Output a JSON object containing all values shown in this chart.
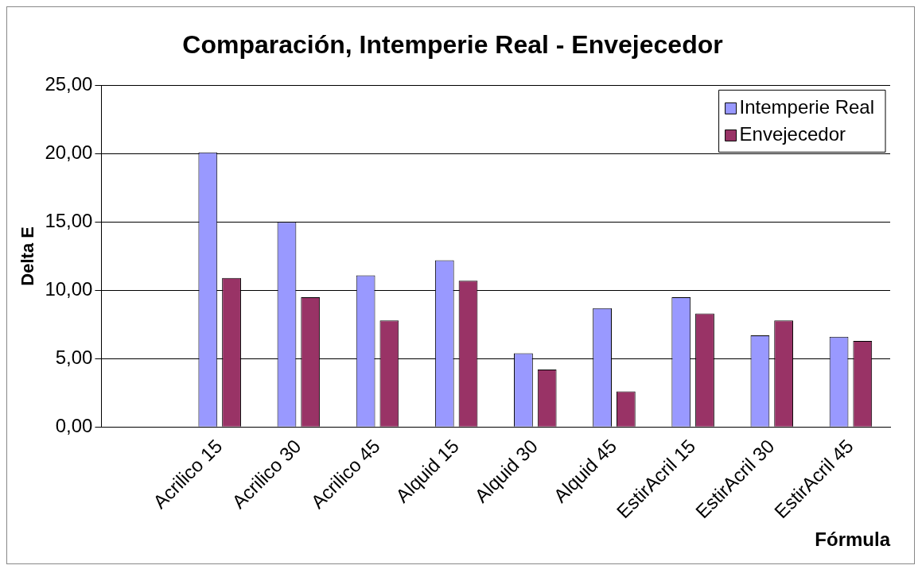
{
  "chart_data": {
    "type": "bar",
    "title": "Comparación, Intemperie Real - Envejecedor",
    "xlabel": "Fórmula",
    "ylabel": "Delta E",
    "categories": [
      null,
      "Acrilico 15",
      "Acrilico 30",
      "Acrilico 45",
      "Alquid 15",
      "Alquid 30",
      "Alquid 45",
      "EstirAcril 15",
      "EstirAcril 30",
      "EstirAcril 45"
    ],
    "series": [
      {
        "name": "Intemperie Real",
        "color": "#9999ff",
        "values": [
          null,
          20.1,
          15.0,
          11.1,
          12.2,
          5.4,
          8.7,
          9.5,
          6.7,
          6.6
        ]
      },
      {
        "name": "Envejecedor",
        "color": "#993366",
        "values": [
          null,
          10.9,
          9.5,
          7.8,
          10.7,
          4.2,
          2.6,
          8.3,
          7.8,
          6.3
        ]
      }
    ],
    "ylim": [
      0,
      25
    ],
    "yticks": [
      {
        "value": 0,
        "label": "0,00"
      },
      {
        "value": 5,
        "label": "5,00"
      },
      {
        "value": 10,
        "label": "10,00"
      },
      {
        "value": 15,
        "label": "15,00"
      },
      {
        "value": 20,
        "label": "20,00"
      },
      {
        "value": 25,
        "label": "25,00"
      }
    ],
    "grid": "y",
    "legend": "top right"
  }
}
